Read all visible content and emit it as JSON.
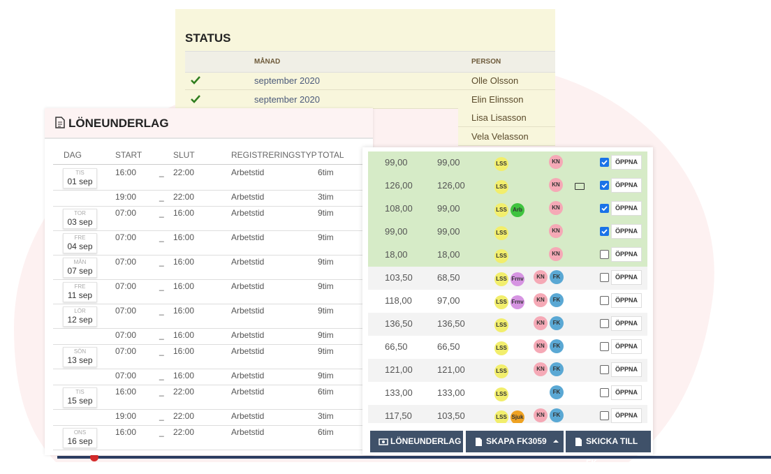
{
  "status": {
    "title": "STATUS",
    "headers": [
      "MÅNAD",
      "PERSON"
    ],
    "rows": [
      {
        "done": true,
        "month": "september 2020",
        "person": "Olle Olsson"
      },
      {
        "done": true,
        "month": "september 2020",
        "person": "Elin Elinsson"
      }
    ],
    "more_persons": [
      "Lisa Lisasson",
      "Vela Velasson"
    ]
  },
  "payroll": {
    "title": "LÖNEUNDERLAG",
    "headers": [
      "DAG",
      "START",
      "SLUT",
      "REGISTRERINGSTYP",
      "TOTAL"
    ],
    "separator": "_",
    "rows": [
      {
        "weekday": "TIS",
        "date": "01 sep",
        "start": "16:00",
        "end": "22:00",
        "type": "Arbetstid",
        "total": "6tim"
      },
      {
        "start": "19:00",
        "end": "22:00",
        "type": "Arbetstid",
        "total": "3tim"
      },
      {
        "weekday": "TOR",
        "date": "03 sep",
        "start": "07:00",
        "end": "16:00",
        "type": "Arbetstid",
        "total": "9tim"
      },
      {
        "weekday": "FRE",
        "date": "04 sep",
        "start": "07:00",
        "end": "16:00",
        "type": "Arbetstid",
        "total": "9tim"
      },
      {
        "weekday": "MÅN",
        "date": "07 sep",
        "start": "07:00",
        "end": "16:00",
        "type": "Arbetstid",
        "total": "9tim"
      },
      {
        "weekday": "FRE",
        "date": "11 sep",
        "start": "07:00",
        "end": "16:00",
        "type": "Arbetstid",
        "total": "9tim"
      },
      {
        "weekday": "LÖR",
        "date": "12 sep",
        "start": "07:00",
        "end": "16:00",
        "type": "Arbetstid",
        "total": "9tim"
      },
      {
        "start": "07:00",
        "end": "16:00",
        "type": "Arbetstid",
        "total": "9tim"
      },
      {
        "weekday": "SÖN",
        "date": "13 sep",
        "start": "07:00",
        "end": "16:00",
        "type": "Arbetstid",
        "total": "9tim"
      },
      {
        "start": "07:00",
        "end": "16:00",
        "type": "Arbetstid",
        "total": "9tim"
      },
      {
        "weekday": "TIS",
        "date": "15 sep",
        "start": "16:00",
        "end": "22:00",
        "type": "Arbetstid",
        "total": "6tim"
      },
      {
        "start": "19:00",
        "end": "22:00",
        "type": "Arbetstid",
        "total": "3tim"
      },
      {
        "weekday": "ONS",
        "date": "16 sep",
        "start": "16:00",
        "end": "22:00",
        "type": "Arbetstid",
        "total": "6tim"
      }
    ]
  },
  "panel": {
    "open_label": "ÖPPNA",
    "rows": [
      {
        "a": "99,00",
        "b": "99,00",
        "tags": [
          "LSS"
        ],
        "flags": [
          "KN"
        ],
        "money": false,
        "checked": true,
        "approved": true
      },
      {
        "a": "126,00",
        "b": "126,00",
        "tags": [
          "LSS"
        ],
        "flags": [
          "KN"
        ],
        "money": true,
        "checked": true,
        "approved": true
      },
      {
        "a": "108,00",
        "b": "99,00",
        "tags": [
          "LSS",
          "Arb"
        ],
        "flags": [
          "KN"
        ],
        "money": false,
        "checked": true,
        "approved": true
      },
      {
        "a": "99,00",
        "b": "99,00",
        "tags": [
          "LSS"
        ],
        "flags": [
          "KN"
        ],
        "money": false,
        "checked": true,
        "approved": true
      },
      {
        "a": "18,00",
        "b": "18,00",
        "tags": [
          "LSS"
        ],
        "flags": [
          "KN"
        ],
        "money": false,
        "checked": false,
        "approved": true
      },
      {
        "a": "103,50",
        "b": "68,50",
        "tags": [
          "LSS",
          "Frnv"
        ],
        "flags": [
          "KN",
          "FK"
        ],
        "money": false,
        "checked": false,
        "approved": false
      },
      {
        "a": "118,00",
        "b": "97,00",
        "tags": [
          "LSS",
          "Frnv"
        ],
        "flags": [
          "KN",
          "FK"
        ],
        "money": false,
        "checked": false,
        "approved": false
      },
      {
        "a": "136,50",
        "b": "136,50",
        "tags": [
          "LSS"
        ],
        "flags": [
          "KN",
          "FK"
        ],
        "money": false,
        "checked": false,
        "approved": false
      },
      {
        "a": "66,50",
        "b": "66,50",
        "tags": [
          "LSS"
        ],
        "flags": [
          "KN",
          "FK"
        ],
        "money": false,
        "checked": false,
        "approved": false
      },
      {
        "a": "121,00",
        "b": "121,00",
        "tags": [
          "LSS"
        ],
        "flags": [
          "KN",
          "FK"
        ],
        "money": false,
        "checked": false,
        "approved": false
      },
      {
        "a": "133,00",
        "b": "133,00",
        "tags": [
          "LSS"
        ],
        "flags": [
          "FK"
        ],
        "money": false,
        "checked": false,
        "approved": false
      },
      {
        "a": "117,50",
        "b": "103,50",
        "tags": [
          "LSS",
          "Sjuk"
        ],
        "flags": [
          "KN",
          "FK"
        ],
        "money": false,
        "checked": false,
        "approved": false
      }
    ],
    "buttons": [
      "LÖNEUNDERLAG",
      "SKAPA FK3059",
      "SKICKA TILL FK"
    ]
  }
}
